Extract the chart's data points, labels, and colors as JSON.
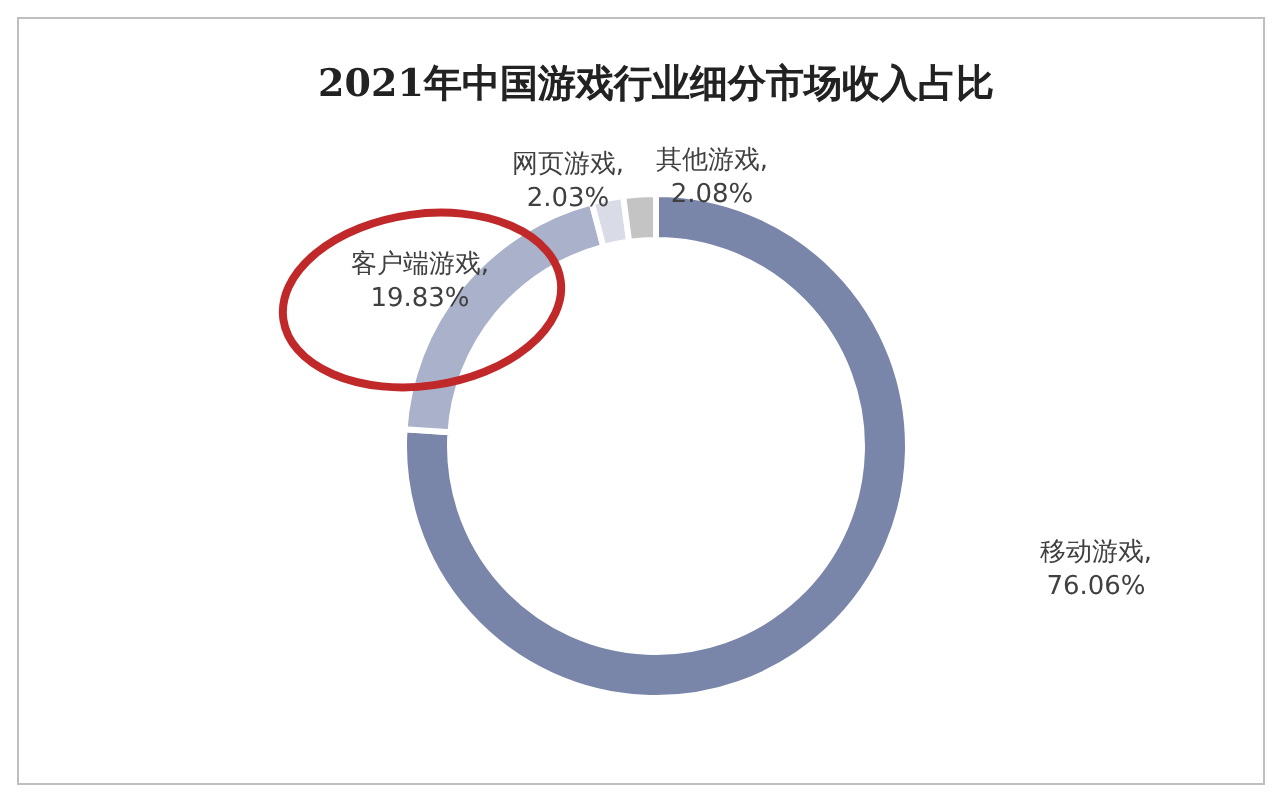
{
  "chart_data": {
    "type": "donut",
    "title": "2021年中国游戏行业细分市场收入占比",
    "categories": [
      "移动游戏",
      "客户端游戏",
      "网页游戏",
      "其他游戏"
    ],
    "values": [
      76.06,
      19.83,
      2.03,
      2.08
    ],
    "value_labels": [
      ",\n76.06%",
      ",\n19.83%",
      ",\n2.03%",
      ",\n2.08%"
    ],
    "colors": [
      "#7a86a9",
      "#aab2cb",
      "#d9dce6",
      "#c4c4c4"
    ]
  }
}
